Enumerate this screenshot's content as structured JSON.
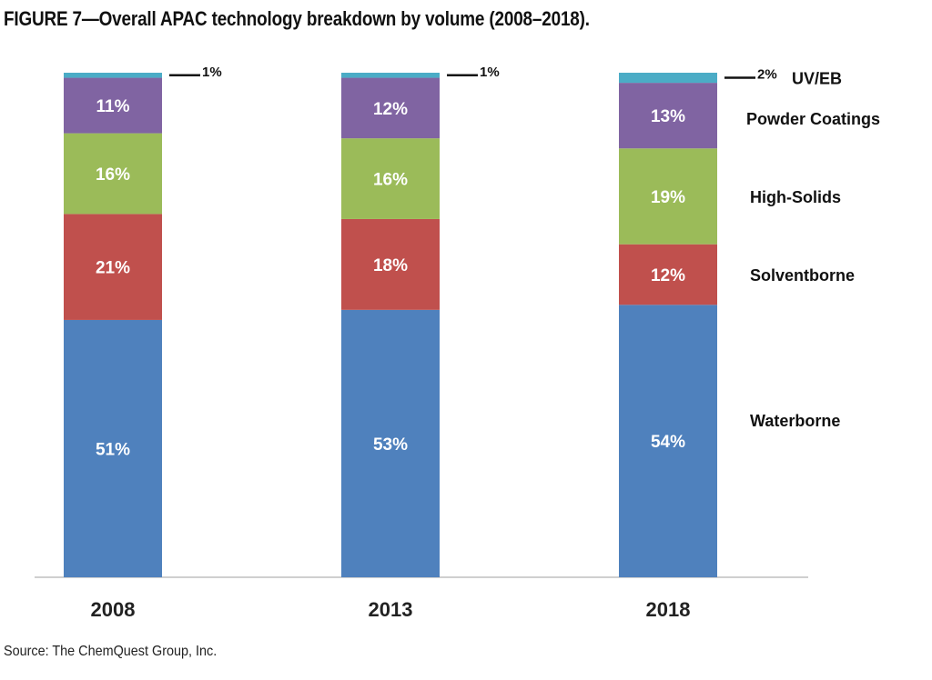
{
  "header": {
    "title": "FIGURE 7—Overall APAC technology breakdown by volume (2008–2018)."
  },
  "footer": {
    "source": "Source: The ChemQuest Group, Inc."
  },
  "chart_data": {
    "type": "bar",
    "stacked": true,
    "categories": [
      "2008",
      "2013",
      "2018"
    ],
    "series": [
      {
        "name": "Waterborne",
        "values": [
          51,
          53,
          54
        ],
        "labels": [
          "51%",
          "53%",
          "54%"
        ],
        "color": "#4f81bd"
      },
      {
        "name": "Solventborne",
        "values": [
          21,
          18,
          12
        ],
        "labels": [
          "21%",
          "18%",
          "12%"
        ],
        "color": "#c0504d"
      },
      {
        "name": "High-Solids",
        "values": [
          16,
          16,
          19
        ],
        "labels": [
          "16%",
          "16%",
          "19%"
        ],
        "color": "#9bbb59"
      },
      {
        "name": "Powder Coatings",
        "values": [
          11,
          12,
          13
        ],
        "labels": [
          "11%",
          "12%",
          "13%"
        ],
        "color": "#8064a2"
      },
      {
        "name": "UV/EB",
        "values": [
          1,
          1,
          2
        ],
        "labels": [
          "1%",
          "1%",
          "2%"
        ],
        "color": "#4bacc6"
      }
    ],
    "legend_position": "right",
    "grid": false
  }
}
